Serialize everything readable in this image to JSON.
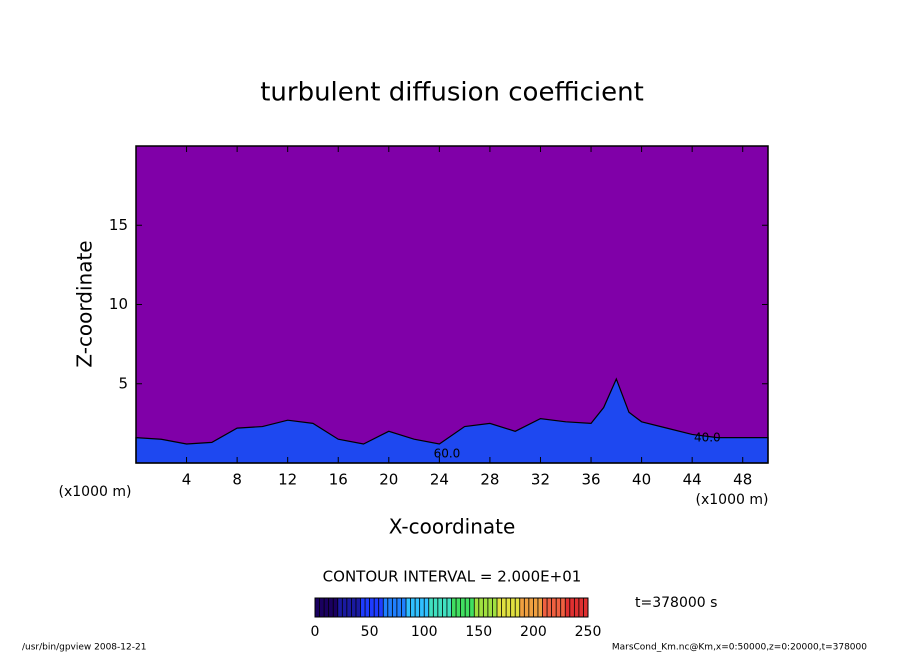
{
  "chart_data": {
    "type": "contour",
    "title": "turbulent diffusion coefficient",
    "x_label": "X-coordinate",
    "y_label": "Z-coordinate",
    "x_unit": "(x1000 m)",
    "xlim": [
      0,
      50
    ],
    "xticks": [
      4,
      8,
      12,
      16,
      20,
      24,
      28,
      32,
      36,
      40,
      44,
      48
    ],
    "ylim": [
      0,
      20
    ],
    "yticks": [
      5,
      10,
      15
    ],
    "background": "#8000a8",
    "color": "#1e48f0",
    "x": [
      0,
      2,
      4,
      6,
      8,
      10,
      12,
      14,
      16,
      18,
      20,
      22,
      24,
      26,
      28,
      30,
      32,
      34,
      36,
      37,
      38,
      39,
      40,
      42,
      44,
      46,
      48,
      50
    ],
    "values": [
      1.6,
      1.5,
      1.2,
      1.3,
      2.2,
      2.3,
      2.7,
      2.5,
      1.5,
      1.2,
      2.0,
      1.5,
      1.2,
      2.3,
      2.5,
      2.0,
      2.8,
      2.6,
      2.5,
      3.5,
      5.3,
      3.2,
      2.6,
      2.2,
      1.8,
      1.6,
      1.6,
      1.6
    ],
    "contour_labels": [
      {
        "text": "40.0",
        "x": 45.2,
        "z": 1.2
      },
      {
        "text": "60.0",
        "x": 24.6,
        "z": 0.2
      }
    ],
    "contour_interval": "CONTOUR INTERVAL = 2.000E+01",
    "time_label": "t=378000 s",
    "colorbar": {
      "lim": [
        0,
        250
      ],
      "ticks": [
        0,
        50,
        100,
        150,
        200,
        250
      ],
      "colors": [
        "#1a0060",
        "#1a1aa0",
        "#1e3cff",
        "#2080ff",
        "#30c0ff",
        "#40e0c0",
        "#40e060",
        "#a0e040",
        "#e0e040",
        "#f0a040",
        "#f06040",
        "#e03030"
      ]
    },
    "footer_left": "/usr/bin/gpview   2008-12-21",
    "footer_right": "MarsCond_Km.nc@Km,x=0:50000,z=0:20000,t=378000"
  }
}
